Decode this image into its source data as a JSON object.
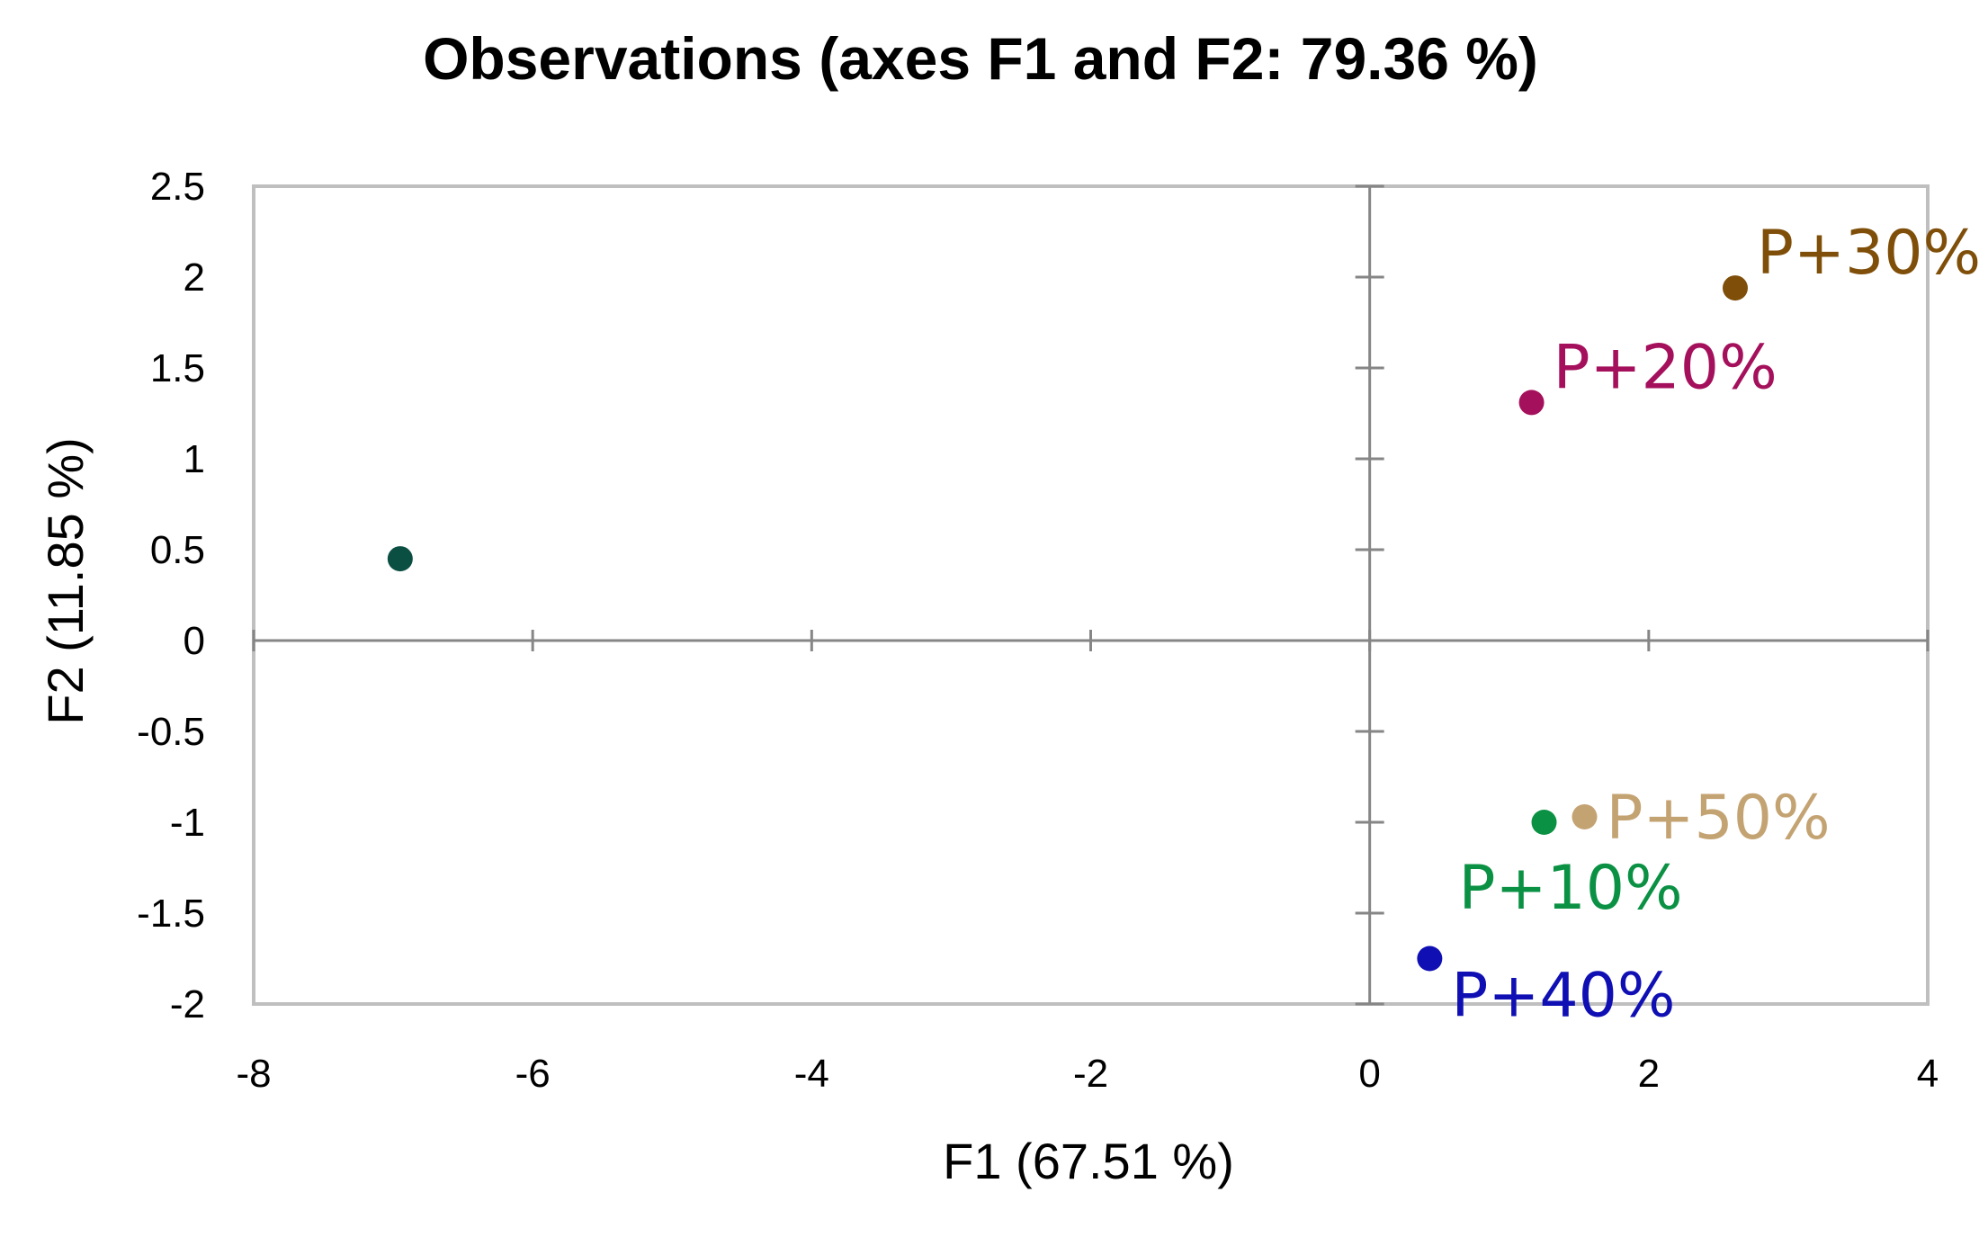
{
  "chart_data": {
    "type": "scatter",
    "title": "Observations (axes F1 and F2: 79.36 %)",
    "xlabel": "F1 (67.51 %)",
    "ylabel": "F2 (11.85 %)",
    "xlim": [
      -8,
      4
    ],
    "ylim": [
      -2,
      2.5
    ],
    "x_ticks": [
      -8,
      -6,
      -4,
      -2,
      0,
      2,
      4
    ],
    "y_ticks": [
      2.5,
      2,
      1.5,
      1,
      0.5,
      0,
      -0.5,
      -1,
      -1.5,
      -2
    ],
    "x_tick_labels": [
      "-8",
      "-6",
      "-4",
      "-2",
      "0",
      "2",
      "4"
    ],
    "y_tick_labels": [
      "2.5",
      "2",
      "1.5",
      "1",
      "0.5",
      "0",
      "-0.5",
      "-1",
      "-1.5",
      "-2"
    ],
    "grid": false,
    "points": [
      {
        "label": "",
        "x": -6.95,
        "y": 0.45,
        "color": "#0b4f43",
        "label_pos": "none"
      },
      {
        "label": "P+30%",
        "x": 2.62,
        "y": 1.94,
        "color": "#7f4f0a",
        "label_pos": "upper-right"
      },
      {
        "label": "P+20%",
        "x": 1.16,
        "y": 1.31,
        "color": "#a5105c",
        "label_pos": "upper-right"
      },
      {
        "label": "P+50%",
        "x": 1.54,
        "y": -0.97,
        "color": "#c4a373",
        "label_pos": "right"
      },
      {
        "label": "P+10%",
        "x": 1.25,
        "y": -1.0,
        "color": "#0b9144",
        "label_pos": "below-left"
      },
      {
        "label": "P+40%",
        "x": 0.43,
        "y": -1.75,
        "color": "#0f0fb4",
        "label_pos": "lower-right"
      }
    ]
  },
  "colors": {
    "frame": "#bfbfbf",
    "zero_axis": "#868686"
  }
}
